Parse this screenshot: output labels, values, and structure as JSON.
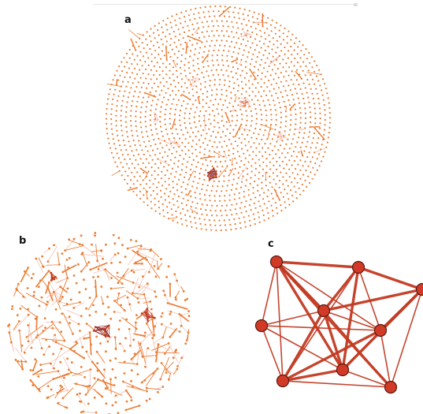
{
  "panels": {
    "a": {
      "label": "a"
    },
    "b": {
      "label": "b"
    },
    "c": {
      "label": "c"
    }
  },
  "colors": {
    "node_light": "#ea7f35",
    "node_dark": "#c23a22",
    "edge_orange": "#ec7a32",
    "edge_light": "#f3b8a6",
    "edge_red": "#c23a22",
    "edge_dark": "#8a1a1a",
    "node_stroke": "#5a1a12"
  },
  "panel_c_graph": {
    "nodes": [
      "n1",
      "n2",
      "n3",
      "n4",
      "n5",
      "n6",
      "n7",
      "n8",
      "n9"
    ],
    "edges": [
      [
        "n1",
        "n2"
      ],
      [
        "n1",
        "n4"
      ],
      [
        "n1",
        "n5"
      ],
      [
        "n1",
        "n6"
      ],
      [
        "n1",
        "n7"
      ],
      [
        "n1",
        "n8"
      ],
      [
        "n1",
        "n9"
      ],
      [
        "n2",
        "n3"
      ],
      [
        "n2",
        "n4"
      ],
      [
        "n2",
        "n6"
      ],
      [
        "n2",
        "n7"
      ],
      [
        "n2",
        "n8"
      ],
      [
        "n3",
        "n4"
      ],
      [
        "n3",
        "n6"
      ],
      [
        "n3",
        "n7"
      ],
      [
        "n3",
        "n9"
      ],
      [
        "n4",
        "n5"
      ],
      [
        "n4",
        "n6"
      ],
      [
        "n4",
        "n7"
      ],
      [
        "n4",
        "n8"
      ],
      [
        "n4",
        "n9"
      ],
      [
        "n5",
        "n6"
      ],
      [
        "n5",
        "n7"
      ],
      [
        "n5",
        "n8"
      ],
      [
        "n6",
        "n7"
      ],
      [
        "n6",
        "n8"
      ],
      [
        "n6",
        "n9"
      ],
      [
        "n7",
        "n8"
      ],
      [
        "n7",
        "n9"
      ],
      [
        "n8",
        "n9"
      ]
    ]
  }
}
